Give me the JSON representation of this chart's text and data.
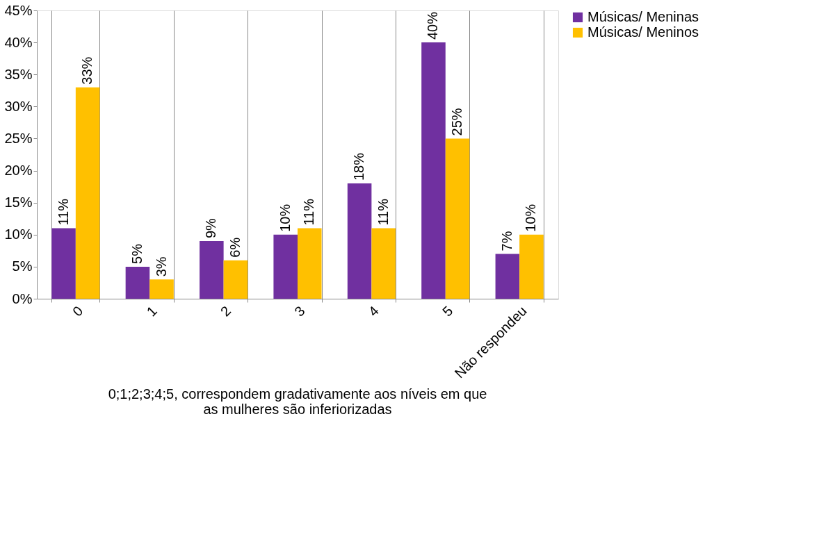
{
  "chart_data": {
    "type": "bar",
    "categories": [
      "0",
      "1",
      "2",
      "3",
      "4",
      "5",
      "Não respondeu"
    ],
    "series": [
      {
        "name": "Músicas/ Meninas",
        "color": "#7030a0",
        "values": [
          11,
          5,
          9,
          10,
          18,
          40,
          7
        ],
        "value_labels": [
          "11%",
          "5%",
          "9%",
          "10%",
          "18%",
          "40%",
          "7%"
        ]
      },
      {
        "name": "Músicas/ Meninos",
        "color": "#ffc000",
        "values": [
          33,
          3,
          6,
          11,
          11,
          25,
          10
        ],
        "value_labels": [
          "33%",
          "3%",
          "6%",
          "11%",
          "11%",
          "25%",
          "10%"
        ]
      }
    ],
    "ylim": [
      0,
      45
    ],
    "yticks": [
      {
        "value": 0,
        "label": "0%"
      },
      {
        "value": 5,
        "label": "5%"
      },
      {
        "value": 10,
        "label": "10%"
      },
      {
        "value": 15,
        "label": "15%"
      },
      {
        "value": 20,
        "label": "20%"
      },
      {
        "value": 25,
        "label": "25%"
      },
      {
        "value": 30,
        "label": "30%"
      },
      {
        "value": 35,
        "label": "35%"
      },
      {
        "value": 40,
        "label": "40%"
      },
      {
        "value": 45,
        "label": "45%"
      }
    ],
    "grid": "x",
    "legend": "right",
    "annotations": [
      "0;1;2;3;4;5, correspondem gradativamente aos níveis em que as mulheres são inferiorizadas"
    ]
  }
}
